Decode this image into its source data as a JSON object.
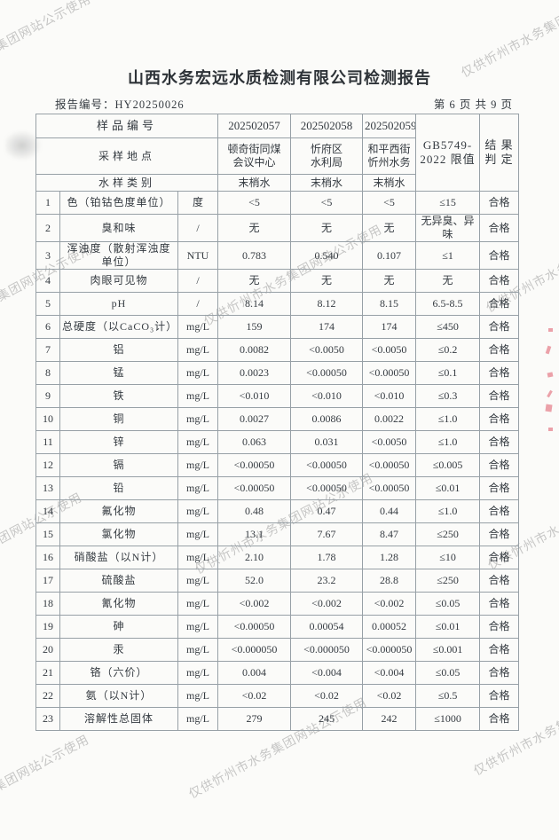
{
  "colors": {
    "paper": "#fbfbf9",
    "table_border": "#97a0a6",
    "text": "#343a40",
    "watermark": "#a6a6a6",
    "stamp_red": "#df5868"
  },
  "watermark": {
    "text": "仅供忻州市水务集团网站公示使用"
  },
  "header": {
    "title": "山西水务宏远水质检测有限公司检测报告",
    "report_no_label": "报告编号：",
    "report_no": "HY20250026",
    "page_info": "第 6 页 共 9 页"
  },
  "table": {
    "header": {
      "sample_no_label": "样品编号",
      "sample_nos": [
        "202502057",
        "202502058",
        "202502059"
      ],
      "location_label": "采样地点",
      "locations": [
        "顿奇街同煤\n会议中心",
        "忻府区\n水利局",
        "和平西街\n忻州水务"
      ],
      "type_label": "水样类别",
      "types": [
        "末梢水",
        "末梢水",
        "末梢水"
      ],
      "limit_label": "GB5749-\n2022 限值",
      "result_label": "结 果\n判 定"
    },
    "rows": [
      {
        "no": "1",
        "name": "色（铂钴色度单位）",
        "unit": "度",
        "v1": "<5",
        "v2": "<5",
        "v3": "<5",
        "limit": "≤15",
        "verdict": "合格"
      },
      {
        "no": "2",
        "name": "臭和味",
        "unit": "/",
        "v1": "无",
        "v2": "无",
        "v3": "无",
        "limit": "无异臭、异味",
        "verdict": "合格"
      },
      {
        "no": "3",
        "name": "浑浊度（散射浑浊度单位）",
        "unit": "NTU",
        "v1": "0.783",
        "v2": "0.540",
        "v3": "0.107",
        "limit": "≤1",
        "verdict": "合格"
      },
      {
        "no": "4",
        "name": "肉眼可见物",
        "unit": "/",
        "v1": "无",
        "v2": "无",
        "v3": "无",
        "limit": "无",
        "verdict": "合格"
      },
      {
        "no": "5",
        "name": "pH",
        "unit": "/",
        "v1": "8.14",
        "v2": "8.12",
        "v3": "8.15",
        "limit": "6.5-8.5",
        "verdict": "合格"
      },
      {
        "no": "6",
        "name": "总硬度（以CaCO₃计）",
        "unit": "mg/L",
        "v1": "159",
        "v2": "174",
        "v3": "174",
        "limit": "≤450",
        "verdict": "合格"
      },
      {
        "no": "7",
        "name": "铝",
        "unit": "mg/L",
        "v1": "0.0082",
        "v2": "<0.0050",
        "v3": "<0.0050",
        "limit": "≤0.2",
        "verdict": "合格"
      },
      {
        "no": "8",
        "name": "锰",
        "unit": "mg/L",
        "v1": "0.0023",
        "v2": "<0.00050",
        "v3": "<0.00050",
        "limit": "≤0.1",
        "verdict": "合格"
      },
      {
        "no": "9",
        "name": "铁",
        "unit": "mg/L",
        "v1": "<0.010",
        "v2": "<0.010",
        "v3": "<0.010",
        "limit": "≤0.3",
        "verdict": "合格"
      },
      {
        "no": "10",
        "name": "铜",
        "unit": "mg/L",
        "v1": "0.0027",
        "v2": "0.0086",
        "v3": "0.0022",
        "limit": "≤1.0",
        "verdict": "合格"
      },
      {
        "no": "11",
        "name": "锌",
        "unit": "mg/L",
        "v1": "0.063",
        "v2": "0.031",
        "v3": "<0.0050",
        "limit": "≤1.0",
        "verdict": "合格"
      },
      {
        "no": "12",
        "name": "镉",
        "unit": "mg/L",
        "v1": "<0.00050",
        "v2": "<0.00050",
        "v3": "<0.00050",
        "limit": "≤0.005",
        "verdict": "合格"
      },
      {
        "no": "13",
        "name": "铅",
        "unit": "mg/L",
        "v1": "<0.00050",
        "v2": "<0.00050",
        "v3": "<0.00050",
        "limit": "≤0.01",
        "verdict": "合格"
      },
      {
        "no": "14",
        "name": "氟化物",
        "unit": "mg/L",
        "v1": "0.48",
        "v2": "0.47",
        "v3": "0.44",
        "limit": "≤1.0",
        "verdict": "合格"
      },
      {
        "no": "15",
        "name": "氯化物",
        "unit": "mg/L",
        "v1": "13.1",
        "v2": "7.67",
        "v3": "8.47",
        "limit": "≤250",
        "verdict": "合格"
      },
      {
        "no": "16",
        "name": "硝酸盐（以N计）",
        "unit": "mg/L",
        "v1": "2.10",
        "v2": "1.78",
        "v3": "1.28",
        "limit": "≤10",
        "verdict": "合格"
      },
      {
        "no": "17",
        "name": "硫酸盐",
        "unit": "mg/L",
        "v1": "52.0",
        "v2": "23.2",
        "v3": "28.8",
        "limit": "≤250",
        "verdict": "合格"
      },
      {
        "no": "18",
        "name": "氰化物",
        "unit": "mg/L",
        "v1": "<0.002",
        "v2": "<0.002",
        "v3": "<0.002",
        "limit": "≤0.05",
        "verdict": "合格"
      },
      {
        "no": "19",
        "name": "砷",
        "unit": "mg/L",
        "v1": "<0.00050",
        "v2": "0.00054",
        "v3": "0.00052",
        "limit": "≤0.01",
        "verdict": "合格"
      },
      {
        "no": "20",
        "name": "汞",
        "unit": "mg/L",
        "v1": "<0.000050",
        "v2": "<0.000050",
        "v3": "<0.000050",
        "limit": "≤0.001",
        "verdict": "合格"
      },
      {
        "no": "21",
        "name": "铬（六价）",
        "unit": "mg/L",
        "v1": "0.004",
        "v2": "<0.004",
        "v3": "<0.004",
        "limit": "≤0.05",
        "verdict": "合格"
      },
      {
        "no": "22",
        "name": "氨（以N计）",
        "unit": "mg/L",
        "v1": "<0.02",
        "v2": "<0.02",
        "v3": "<0.02",
        "limit": "≤0.5",
        "verdict": "合格"
      },
      {
        "no": "23",
        "name": "溶解性总固体",
        "unit": "mg/L",
        "v1": "279",
        "v2": "245",
        "v3": "242",
        "limit": "≤1000",
        "verdict": "合格"
      }
    ]
  }
}
